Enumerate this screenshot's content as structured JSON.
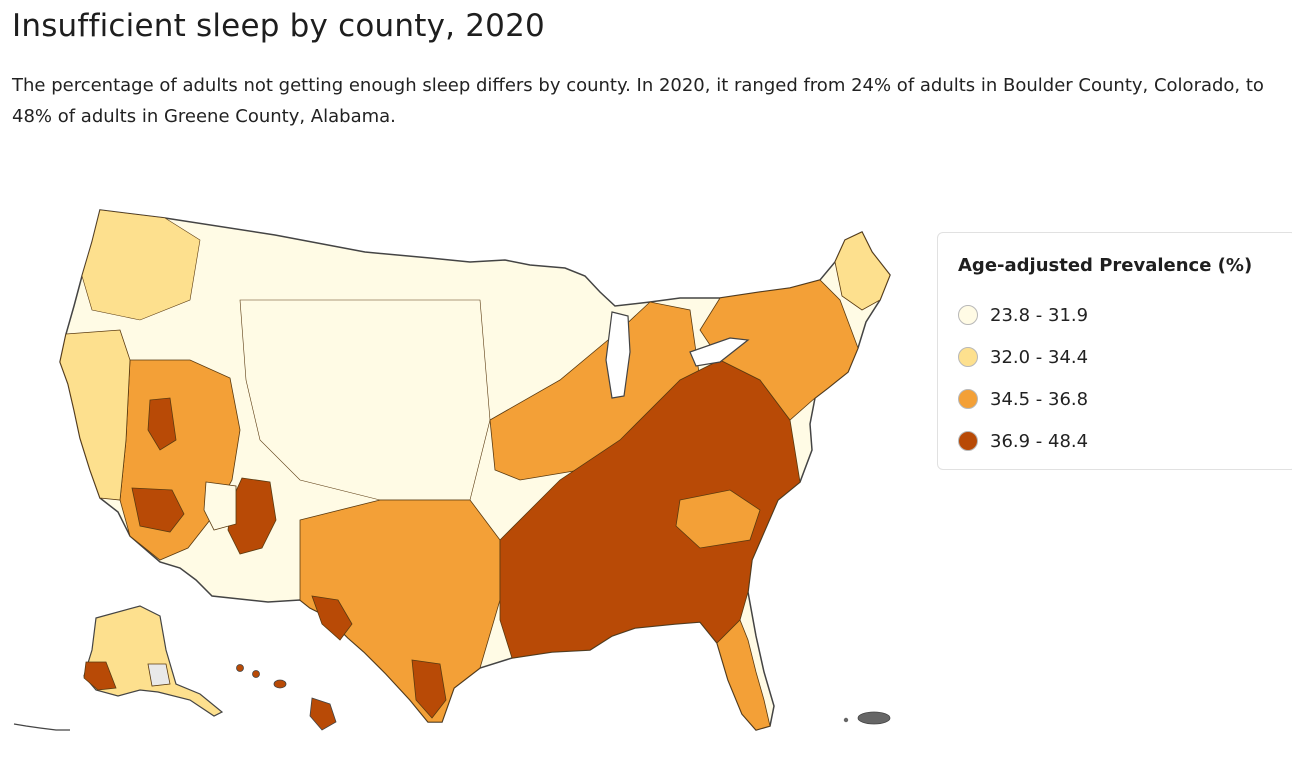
{
  "title": "Insufficient sleep by county, 2020",
  "description": "The percentage of adults not getting enough sleep differs by county. In 2020, it ranged from 24% of adults in Boulder County, Colorado, to 48% of adults in Greene County, Alabama.",
  "legend": {
    "title": "Age-adjusted Prevalence (%)",
    "items": [
      {
        "label": "23.8 - 31.9",
        "color": "#fffbe5"
      },
      {
        "label": "32.0 - 34.4",
        "color": "#fde08e"
      },
      {
        "label": "34.5 - 36.8",
        "color": "#f3a037"
      },
      {
        "label": "36.9 - 48.4",
        "color": "#b84a06"
      }
    ]
  },
  "map": {
    "border_color": "#444444",
    "missing_color": "#e9e9e9"
  }
}
